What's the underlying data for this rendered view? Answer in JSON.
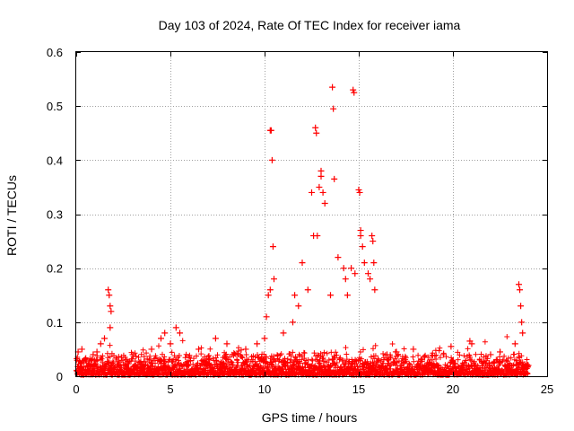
{
  "chart_data": {
    "type": "scatter",
    "title": "Day 103 of 2024, Rate Of TEC Index for receiver iama",
    "xlabel": "GPS time / hours",
    "ylabel": "ROTI / TECUs",
    "xlim": [
      0,
      25
    ],
    "ylim": [
      0,
      0.6
    ],
    "xticks": [
      0,
      5,
      10,
      15,
      20,
      25
    ],
    "xtick_labels": [
      "0",
      "5",
      "10",
      "15",
      "20",
      "25"
    ],
    "yticks": [
      0,
      0.1,
      0.2,
      0.3,
      0.4,
      0.5,
      0.6
    ],
    "ytick_labels": [
      "0",
      "0.1",
      "0.2",
      "0.3",
      "0.4",
      "0.5",
      "0.6"
    ],
    "grid": true,
    "marker": "plus",
    "color": "#ff0000",
    "background_band_note": "dense baseline of values between 0 and about 0.05 across 0-24 h",
    "series": [
      {
        "name": "ROTI",
        "x": [
          0.1,
          0.3,
          0.5,
          0.9,
          1.1,
          1.3,
          1.5,
          1.7,
          1.75,
          1.8,
          1.85,
          1.8,
          2.4,
          3.0,
          4.0,
          4.5,
          4.7,
          5.0,
          5.3,
          5.5,
          6.5,
          7.4,
          8.0,
          9.0,
          9.6,
          10.0,
          10.1,
          10.2,
          10.3,
          10.3,
          10.35,
          10.4,
          10.45,
          10.5,
          11.0,
          11.5,
          11.6,
          11.8,
          12.0,
          12.3,
          12.5,
          12.6,
          12.7,
          12.75,
          12.8,
          12.9,
          13.0,
          13.0,
          13.1,
          13.2,
          13.5,
          13.6,
          13.65,
          13.7,
          13.9,
          14.2,
          14.3,
          14.4,
          14.6,
          14.7,
          14.75,
          14.8,
          15.0,
          15.05,
          15.1,
          15.1,
          15.2,
          15.3,
          15.5,
          15.6,
          15.7,
          15.75,
          15.8,
          15.85,
          16.5,
          17.0,
          17.9,
          18.5,
          19.5,
          19.9,
          20.9,
          21.0,
          22.0,
          22.5,
          23.3,
          23.5,
          23.55,
          23.6,
          23.65,
          23.7,
          24.0
        ],
        "values": [
          0.045,
          0.05,
          0.03,
          0.04,
          0.045,
          0.06,
          0.07,
          0.16,
          0.15,
          0.13,
          0.12,
          0.09,
          0.035,
          0.04,
          0.05,
          0.07,
          0.08,
          0.06,
          0.09,
          0.08,
          0.05,
          0.07,
          0.06,
          0.05,
          0.06,
          0.07,
          0.11,
          0.15,
          0.16,
          0.455,
          0.455,
          0.4,
          0.24,
          0.18,
          0.08,
          0.1,
          0.15,
          0.13,
          0.21,
          0.16,
          0.34,
          0.26,
          0.46,
          0.45,
          0.26,
          0.35,
          0.37,
          0.38,
          0.34,
          0.32,
          0.15,
          0.535,
          0.495,
          0.365,
          0.22,
          0.2,
          0.18,
          0.15,
          0.2,
          0.53,
          0.525,
          0.19,
          0.345,
          0.34,
          0.27,
          0.26,
          0.24,
          0.21,
          0.19,
          0.18,
          0.26,
          0.25,
          0.21,
          0.16,
          0.04,
          0.045,
          0.05,
          0.035,
          0.04,
          0.055,
          0.065,
          0.06,
          0.04,
          0.045,
          0.06,
          0.17,
          0.16,
          0.13,
          0.1,
          0.08,
          0.02
        ]
      }
    ]
  }
}
